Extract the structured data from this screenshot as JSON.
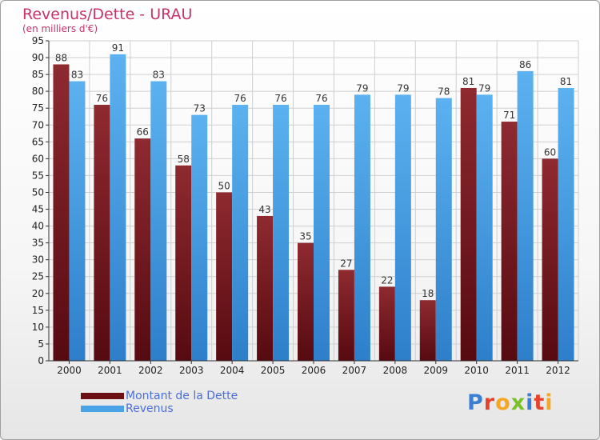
{
  "header": {
    "title": "Revenus/Dette - URAU",
    "subtitle": "(en milliers d'€)"
  },
  "legend": {
    "dette_label": "Montant de la Dette",
    "revenus_label": "Revenus"
  },
  "logo": {
    "text": "Proxiti",
    "letter_colors": [
      "#3b7fd4",
      "#e8412c",
      "#f5a623",
      "#7bbf2a",
      "#3b7fd4",
      "#e8412c",
      "#f5a623"
    ]
  },
  "colors": {
    "dette": "#7a1c22",
    "revenus": "#4aa3e6",
    "title": "#c8346a",
    "grid": "#cfcfcf"
  },
  "chart_data": {
    "type": "bar",
    "title": "Revenus/Dette - URAU",
    "subtitle": "(en milliers d'€)",
    "categories": [
      "2000",
      "2001",
      "2002",
      "2003",
      "2004",
      "2005",
      "2006",
      "2007",
      "2008",
      "2009",
      "2010",
      "2011",
      "2012"
    ],
    "series": [
      {
        "name": "Montant de la Dette",
        "values": [
          88,
          76,
          66,
          58,
          50,
          43,
          35,
          27,
          22,
          18,
          81,
          71,
          60
        ]
      },
      {
        "name": "Revenus",
        "values": [
          83,
          91,
          83,
          73,
          76,
          76,
          76,
          79,
          79,
          78,
          79,
          86,
          81
        ]
      }
    ],
    "ylim": [
      0,
      95
    ],
    "ytick_step": 5,
    "grid": true,
    "legend_position": "bottom-left"
  }
}
